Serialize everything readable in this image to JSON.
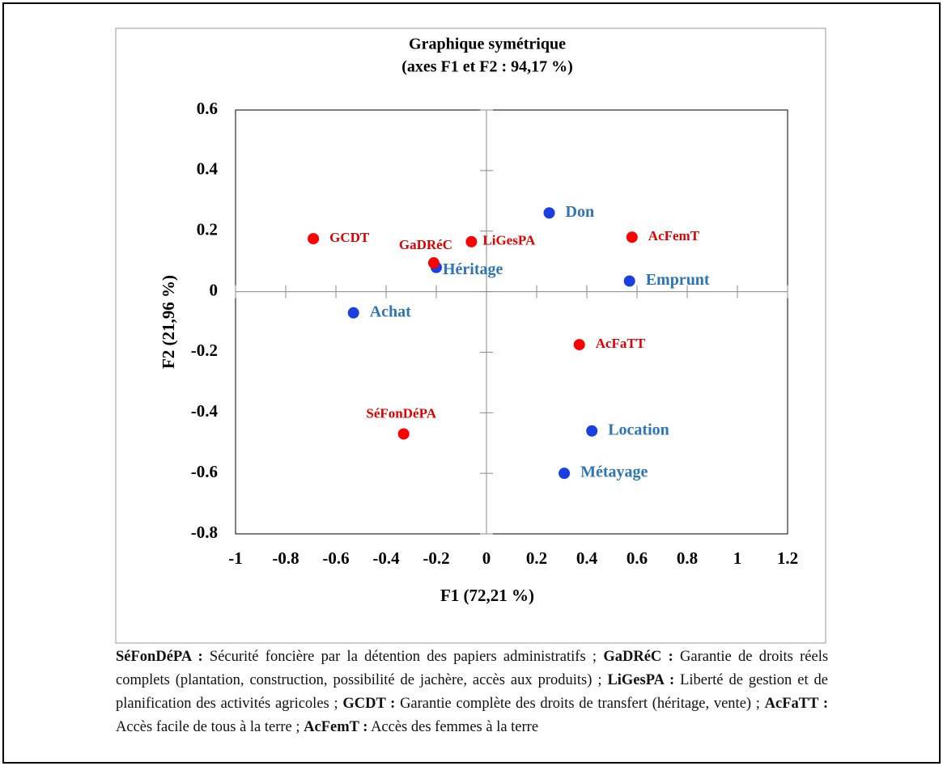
{
  "chart_data": {
    "type": "scatter",
    "title": "Graphique symétrique",
    "subtitle": "(axes F1 et F2 : 94,17 %)",
    "x_label": "F1 (72,21 %)",
    "y_label": "F2 (21,96 %)",
    "xlim": [
      -1,
      1.2
    ],
    "xticks": [
      -1,
      -0.8,
      -0.6,
      -0.4,
      -0.2,
      0,
      0.2,
      0.4,
      0.6,
      0.8,
      1,
      1.2
    ],
    "ylim": [
      -0.8,
      0.6
    ],
    "yticks": [
      -0.8,
      -0.6,
      -0.4,
      -0.2,
      0,
      0.2,
      0.4,
      0.6
    ],
    "series": [
      {
        "color": "#1a3fe0",
        "label_color": "#2e75b6",
        "labels": [
          "Don",
          "Héritage",
          "Emprunt",
          "Achat",
          "Location",
          "Métayage"
        ],
        "x": [
          0.25,
          -0.2,
          0.57,
          -0.53,
          0.42,
          0.31
        ],
        "values": [
          0.26,
          0.08,
          0.035,
          -0.07,
          -0.46,
          -0.6
        ]
      },
      {
        "color": "#ff0000",
        "label_color": "#e00000",
        "labels": [
          "GCDT",
          "LiGesPA",
          "GaDRéC",
          "AcFemT",
          "AcFaTT",
          "SéFonDéPA"
        ],
        "x": [
          -0.69,
          -0.06,
          -0.21,
          0.58,
          0.37,
          -0.33
        ],
        "values": [
          0.175,
          0.165,
          0.095,
          0.18,
          -0.175,
          -0.47
        ]
      }
    ]
  },
  "note": [
    {
      "abbr": "SéFonDéPA :",
      "text": "Sécurité foncière par la détention des papiers administratifs ;"
    },
    {
      "abbr": "GaDRéC :",
      "text": "Garantie de droits réels complets (plantation, construction, possibilité de jachère, accès aux produits) ;"
    },
    {
      "abbr": "LiGesPA :",
      "text": "Liberté de gestion et de planification des activités agricoles ;"
    },
    {
      "abbr": "GCDT :",
      "text": "Garantie complète des droits de transfert (héritage, vente) ;"
    },
    {
      "abbr": "AcFaTT :",
      "text": "Accès facile de tous à la terre ;"
    },
    {
      "abbr": "AcFemT :",
      "text": "Accès des femmes à la terre"
    }
  ]
}
